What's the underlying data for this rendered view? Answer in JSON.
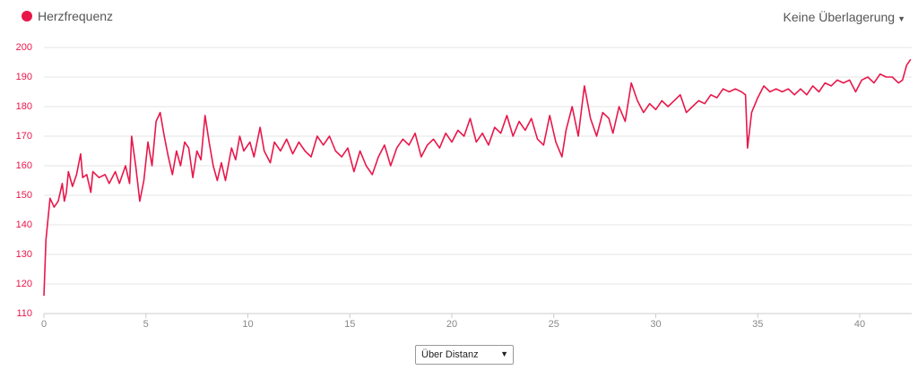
{
  "chart_data": {
    "type": "line",
    "series": [
      {
        "name": "Herzfrequenz",
        "color": "#e8174a",
        "x": [
          0,
          0.1,
          0.3,
          0.5,
          0.7,
          0.9,
          1.0,
          1.1,
          1.2,
          1.4,
          1.6,
          1.8,
          1.9,
          2.1,
          2.3,
          2.4,
          2.7,
          3.0,
          3.2,
          3.5,
          3.7,
          4.0,
          4.2,
          4.3,
          4.5,
          4.7,
          4.9,
          5.1,
          5.3,
          5.5,
          5.7,
          5.9,
          6.1,
          6.3,
          6.5,
          6.7,
          6.9,
          7.1,
          7.3,
          7.5,
          7.7,
          7.9,
          8.1,
          8.3,
          8.5,
          8.7,
          8.9,
          9.2,
          9.4,
          9.6,
          9.8,
          10.1,
          10.3,
          10.6,
          10.8,
          11.1,
          11.3,
          11.6,
          11.9,
          12.2,
          12.5,
          12.8,
          13.1,
          13.4,
          13.7,
          14.0,
          14.3,
          14.6,
          14.9,
          15.2,
          15.5,
          15.8,
          16.1,
          16.4,
          16.7,
          17.0,
          17.3,
          17.6,
          17.9,
          18.2,
          18.5,
          18.8,
          19.1,
          19.4,
          19.7,
          20.0,
          20.3,
          20.6,
          20.9,
          21.2,
          21.5,
          21.8,
          22.1,
          22.4,
          22.7,
          23.0,
          23.3,
          23.6,
          23.9,
          24.2,
          24.5,
          24.8,
          25.1,
          25.4,
          25.6,
          25.9,
          26.2,
          26.5,
          26.8,
          27.1,
          27.4,
          27.7,
          27.9,
          28.2,
          28.5,
          28.8,
          29.1,
          29.4,
          29.7,
          30.0,
          30.3,
          30.6,
          30.9,
          31.2,
          31.5,
          31.8,
          32.1,
          32.4,
          32.7,
          33.0,
          33.3,
          33.6,
          33.9,
          34.2,
          34.4,
          34.5,
          34.7,
          35.0,
          35.3,
          35.6,
          35.9,
          36.2,
          36.5,
          36.8,
          37.1,
          37.4,
          37.7,
          38.0,
          38.3,
          38.6,
          38.9,
          39.2,
          39.5,
          39.8,
          40.1,
          40.4,
          40.7,
          41.0,
          41.3,
          41.6,
          41.9,
          42.1,
          42.3,
          42.5
        ],
        "values": [
          116,
          135,
          149,
          146,
          148,
          154,
          148,
          151,
          158,
          153,
          157,
          164,
          156,
          157,
          151,
          158,
          156,
          157,
          154,
          158,
          154,
          160,
          154,
          170,
          160,
          148,
          155,
          168,
          160,
          175,
          178,
          170,
          163,
          157,
          165,
          160,
          168,
          166,
          156,
          165,
          162,
          177,
          168,
          160,
          155,
          161,
          155,
          166,
          162,
          170,
          165,
          168,
          163,
          173,
          165,
          161,
          168,
          165,
          169,
          164,
          168,
          165,
          163,
          170,
          167,
          170,
          165,
          163,
          166,
          158,
          165,
          160,
          157,
          163,
          167,
          160,
          166,
          169,
          167,
          171,
          163,
          167,
          169,
          166,
          171,
          168,
          172,
          170,
          176,
          168,
          171,
          167,
          173,
          171,
          177,
          170,
          175,
          172,
          176,
          169,
          167,
          177,
          168,
          163,
          172,
          180,
          170,
          187,
          176,
          170,
          178,
          176,
          171,
          180,
          175,
          188,
          182,
          178,
          181,
          179,
          182,
          180,
          182,
          184,
          178,
          180,
          182,
          181,
          184,
          183,
          186,
          185,
          186,
          185,
          184,
          166,
          178,
          183,
          187,
          185,
          186,
          185,
          186,
          184,
          186,
          184,
          187,
          185,
          188,
          187,
          189,
          188,
          189,
          185,
          189,
          190,
          188,
          191,
          190,
          190,
          188,
          189,
          194,
          196
        ]
      }
    ],
    "xlim": [
      0,
      42.55
    ],
    "ylim": [
      110,
      200
    ],
    "xticks": [
      0,
      5,
      10,
      15,
      20,
      25,
      30,
      35,
      40
    ],
    "yticks": [
      110,
      120,
      130,
      140,
      150,
      160,
      170,
      180,
      190,
      200
    ],
    "grid": true
  },
  "controls": {
    "overlay": "Keine Überlagerung",
    "axis_mode": "Über Distanz"
  }
}
